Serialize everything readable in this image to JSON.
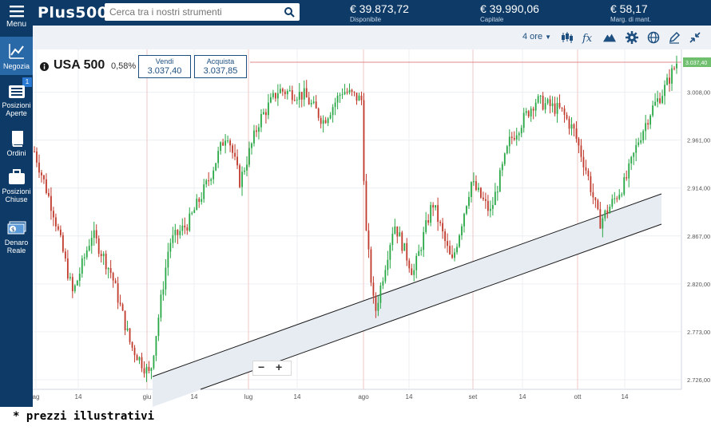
{
  "app": {
    "logo": "Plus500",
    "search_placeholder": "Cerca tra i nostri strumenti"
  },
  "account": [
    {
      "value": "€ 39.873,72",
      "label": "Disponibile"
    },
    {
      "value": "€ 39.990,06",
      "label": "Capitale"
    },
    {
      "value": "€ 58,17",
      "label": "Marg. di mant."
    }
  ],
  "sidebar": {
    "menu_label": "Menu",
    "items": [
      {
        "label1": "Negozia",
        "label2": "",
        "icon": "chart-line-icon",
        "active": true
      },
      {
        "label1": "Posizioni",
        "label2": "Aperte",
        "icon": "list-icon",
        "badge": "1"
      },
      {
        "label1": "Ordini",
        "label2": "",
        "icon": "book-icon"
      },
      {
        "label1": "Posizioni",
        "label2": "Chiuse",
        "icon": "briefcase-icon"
      },
      {
        "label1": "Denaro",
        "label2": "Reale",
        "icon": "money-icon"
      }
    ]
  },
  "toolbar": {
    "timeframe": "4 ore",
    "icons": [
      "candlestick-icon",
      "function-icon",
      "mountain-icon",
      "gear-icon",
      "globe-icon",
      "pencil-icon",
      "compress-icon"
    ]
  },
  "instrument": {
    "name": "USA 500",
    "change": "0,58%",
    "sell_label": "Vendi",
    "sell_price": "3.037,40",
    "buy_label": "Acquista",
    "buy_price": "3.037,85"
  },
  "chart_data": {
    "type": "candlestick",
    "current_price_label": "3.037,40",
    "y_ticks": [
      "3.008,00",
      "2.961,00",
      "2.914,00",
      "2.867,00",
      "2.820,00",
      "2.773,00",
      "2.726,00"
    ],
    "y_tick_values": [
      3008,
      2961,
      2914,
      2867,
      2820,
      2773,
      2726
    ],
    "x_ticks": [
      "ag",
      "14",
      "giu",
      "14",
      "lug",
      "14",
      "ago",
      "14",
      "set",
      "14",
      "ott",
      "14"
    ],
    "current_price": 3037.4,
    "colors": {
      "up": "#28a745",
      "down": "#c0392b",
      "channel_fill": "#e7ecf2",
      "price_line": "#e08a8a"
    },
    "trend_path": [
      [
        0,
        2950
      ],
      [
        0.03,
        2890
      ],
      [
        0.06,
        2810
      ],
      [
        0.09,
        2870
      ],
      [
        0.12,
        2830
      ],
      [
        0.15,
        2760
      ],
      [
        0.18,
        2730
      ],
      [
        0.21,
        2860
      ],
      [
        0.24,
        2880
      ],
      [
        0.27,
        2920
      ],
      [
        0.3,
        2970
      ],
      [
        0.32,
        2920
      ],
      [
        0.35,
        2980
      ],
      [
        0.38,
        3010
      ],
      [
        0.42,
        3005
      ],
      [
        0.45,
        2980
      ],
      [
        0.48,
        3010
      ],
      [
        0.51,
        3000
      ],
      [
        0.515,
        2880
      ],
      [
        0.53,
        2790
      ],
      [
        0.56,
        2880
      ],
      [
        0.59,
        2830
      ],
      [
        0.62,
        2900
      ],
      [
        0.65,
        2840
      ],
      [
        0.68,
        2920
      ],
      [
        0.71,
        2890
      ],
      [
        0.74,
        2960
      ],
      [
        0.78,
        3000
      ],
      [
        0.82,
        2990
      ],
      [
        0.84,
        2970
      ],
      [
        0.86,
        2930
      ],
      [
        0.88,
        2880
      ],
      [
        0.9,
        2900
      ],
      [
        0.92,
        2920
      ],
      [
        0.94,
        2960
      ],
      [
        0.96,
        2990
      ],
      [
        0.98,
        3010
      ],
      [
        1.0,
        3037
      ]
    ]
  },
  "zoom": {
    "minus": "−",
    "plus": "+"
  },
  "footnote": "* prezzi illustrativi"
}
